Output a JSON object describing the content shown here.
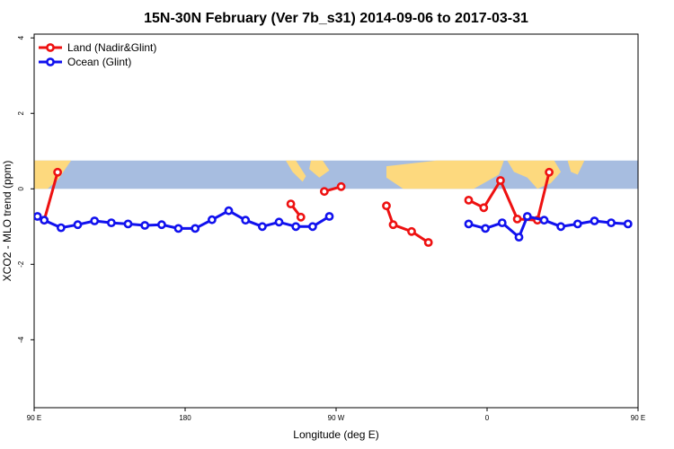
{
  "chart_data": {
    "type": "line",
    "title": "15N-30N February (Ver 7b_s31)   2014-09-06 to 2017-03-31",
    "xlabel": "Longitude (deg E)",
    "ylabel": "XCO2 - MLO trend (ppm)",
    "xlim": [
      90,
      450
    ],
    "ylim": [
      -5.8,
      4.1
    ],
    "x_ticks": [
      {
        "value": 90,
        "label": "90 E"
      },
      {
        "value": 180,
        "label": "180"
      },
      {
        "value": 270,
        "label": "90 W"
      },
      {
        "value": 360,
        "label": "0"
      },
      {
        "value": 450,
        "label": "90 E"
      },
      {
        "value": 540,
        "label": "180"
      }
    ],
    "y_ticks": [
      {
        "value": 4,
        "label": "4"
      },
      {
        "value": 2,
        "label": "2"
      },
      {
        "value": 0,
        "label": "0"
      },
      {
        "value": -2,
        "label": "-2"
      },
      {
        "value": -4,
        "label": "-4"
      }
    ],
    "legend_position": "top-left",
    "map_band": {
      "y_range": [
        0,
        0.75
      ],
      "ocean_color": "#A7BDE0",
      "land_color": "#FDD97E"
    },
    "series": [
      {
        "name": "Land (Nadir&Glint)",
        "color": "#EE1111",
        "segments": [
          [
            [
              96,
              -0.83
            ],
            [
              104,
              0.44
            ]
          ],
          [
            [
              243,
              -0.4
            ],
            [
              249,
              -0.75
            ]
          ],
          [
            [
              263,
              -0.07
            ],
            [
              273,
              0.06
            ]
          ],
          [
            [
              300,
              -0.45
            ],
            [
              304,
              -0.95
            ],
            [
              315,
              -1.13
            ],
            [
              325,
              -1.42
            ]
          ],
          [
            [
              349,
              -0.3
            ],
            [
              358,
              -0.5
            ],
            [
              368,
              0.22
            ],
            [
              378,
              -0.8
            ],
            [
              390,
              -0.83
            ],
            [
              397,
              0.44
            ]
          ]
        ]
      },
      {
        "name": "Ocean (Glint)",
        "color": "#1111EE",
        "segments": [
          [
            [
              92,
              -0.73
            ],
            [
              96,
              -0.83
            ],
            [
              106,
              -1.03
            ],
            [
              116,
              -0.95
            ],
            [
              126,
              -0.85
            ],
            [
              136,
              -0.9
            ],
            [
              146,
              -0.93
            ],
            [
              156,
              -0.97
            ],
            [
              166,
              -0.95
            ],
            [
              176,
              -1.05
            ],
            [
              186,
              -1.05
            ],
            [
              196,
              -0.82
            ],
            [
              206,
              -0.58
            ],
            [
              216,
              -0.83
            ],
            [
              226,
              -1.0
            ],
            [
              236,
              -0.88
            ],
            [
              246,
              -1.0
            ],
            [
              256,
              -1.0
            ],
            [
              266,
              -0.73
            ]
          ],
          [
            [
              349,
              -0.93
            ],
            [
              359,
              -1.05
            ],
            [
              369,
              -0.9
            ],
            [
              379,
              -1.28
            ],
            [
              384,
              -0.73
            ],
            [
              394,
              -0.83
            ],
            [
              404,
              -1.0
            ],
            [
              414,
              -0.93
            ],
            [
              424,
              -0.85
            ],
            [
              434,
              -0.9
            ],
            [
              444,
              -0.93
            ]
          ]
        ]
      }
    ]
  }
}
